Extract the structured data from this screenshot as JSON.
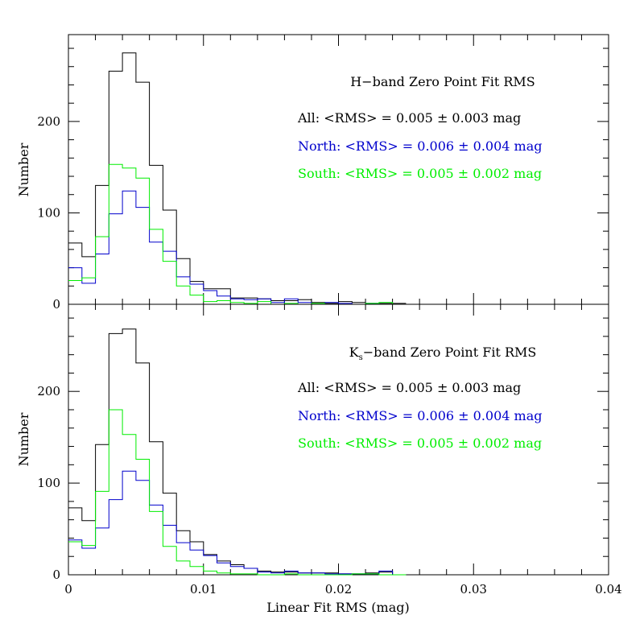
{
  "chart_data": [
    {
      "type": "histogram",
      "panel": "top",
      "title": "H−band Zero Point Fit RMS",
      "ylabel": "Number",
      "xlim": [
        0,
        0.04
      ],
      "ylim": [
        0,
        295
      ],
      "yticks": [
        0,
        100,
        200
      ],
      "bin_edges": [
        0.0,
        0.001,
        0.002,
        0.003,
        0.004,
        0.005,
        0.006,
        0.007,
        0.008,
        0.009,
        0.01,
        0.011,
        0.012,
        0.013,
        0.014,
        0.015,
        0.016,
        0.017,
        0.018,
        0.019,
        0.02,
        0.021,
        0.022,
        0.023,
        0.024,
        0.025
      ],
      "series": [
        {
          "name": "All",
          "label": "All: <RMS> = 0.005 ± 0.003 mag",
          "color": "#000000",
          "values": [
            67,
            52,
            130,
            255,
            275,
            243,
            152,
            103,
            50,
            25,
            17,
            17,
            7,
            7,
            6,
            4,
            4,
            5,
            2,
            1,
            3,
            2,
            1,
            1,
            1
          ]
        },
        {
          "name": "North",
          "label": "North: <RMS> = 0.006 ± 0.004 mag",
          "color": "#0000cc",
          "values": [
            40,
            23,
            55,
            99,
            124,
            106,
            68,
            58,
            30,
            22,
            15,
            9,
            6,
            5,
            6,
            2,
            6,
            2,
            0,
            2,
            1,
            0,
            1,
            0,
            0
          ]
        },
        {
          "name": "South",
          "label": "South: <RMS> = 0.005 ± 0.002 mag",
          "color": "#00ee00",
          "values": [
            26,
            29,
            74,
            153,
            149,
            138,
            82,
            47,
            20,
            10,
            3,
            4,
            2,
            1,
            3,
            0,
            1,
            0,
            1,
            0,
            0,
            0,
            1,
            2,
            0
          ]
        }
      ]
    },
    {
      "type": "histogram",
      "panel": "bottom",
      "title_main": "K",
      "title_sub": "s",
      "title_rest": "−band Zero Point Fit RMS",
      "ylabel": "Number",
      "xlabel": "Linear Fit RMS (mag)",
      "xlim": [
        0,
        0.04
      ],
      "ylim": [
        0,
        295
      ],
      "yticks": [
        0,
        100,
        200
      ],
      "xticks": [
        0,
        0.01,
        0.02,
        0.03,
        0.04
      ],
      "xtick_labels": [
        "0",
        "0.01",
        "0.02",
        "0.03",
        "0.04"
      ],
      "bin_edges": [
        0.0,
        0.001,
        0.002,
        0.003,
        0.004,
        0.005,
        0.006,
        0.007,
        0.008,
        0.009,
        0.01,
        0.011,
        0.012,
        0.013,
        0.014,
        0.015,
        0.016,
        0.017,
        0.018,
        0.019,
        0.02,
        0.021,
        0.022,
        0.023,
        0.024,
        0.025
      ],
      "series": [
        {
          "name": "All",
          "label": "All: <RMS> = 0.005 ± 0.003 mag",
          "color": "#000000",
          "values": [
            73,
            59,
            142,
            263,
            268,
            231,
            145,
            89,
            48,
            36,
            22,
            15,
            11,
            7,
            4,
            3,
            3,
            2,
            2,
            2,
            1,
            1,
            2,
            3,
            0
          ]
        },
        {
          "name": "North",
          "label": "North: <RMS> = 0.006 ± 0.004 mag",
          "color": "#0000cc",
          "values": [
            38,
            29,
            51,
            82,
            113,
            103,
            76,
            54,
            35,
            27,
            21,
            13,
            9,
            7,
            3,
            2,
            4,
            2,
            2,
            1,
            1,
            1,
            1,
            4,
            0
          ]
        },
        {
          "name": "South",
          "label": "South: <RMS> = 0.005 ± 0.002 mag",
          "color": "#00ee00",
          "values": [
            36,
            32,
            91,
            180,
            153,
            126,
            69,
            31,
            15,
            9,
            4,
            2,
            1,
            1,
            0,
            0,
            1,
            0,
            0,
            0,
            0,
            1,
            1,
            0,
            0
          ]
        }
      ]
    }
  ]
}
